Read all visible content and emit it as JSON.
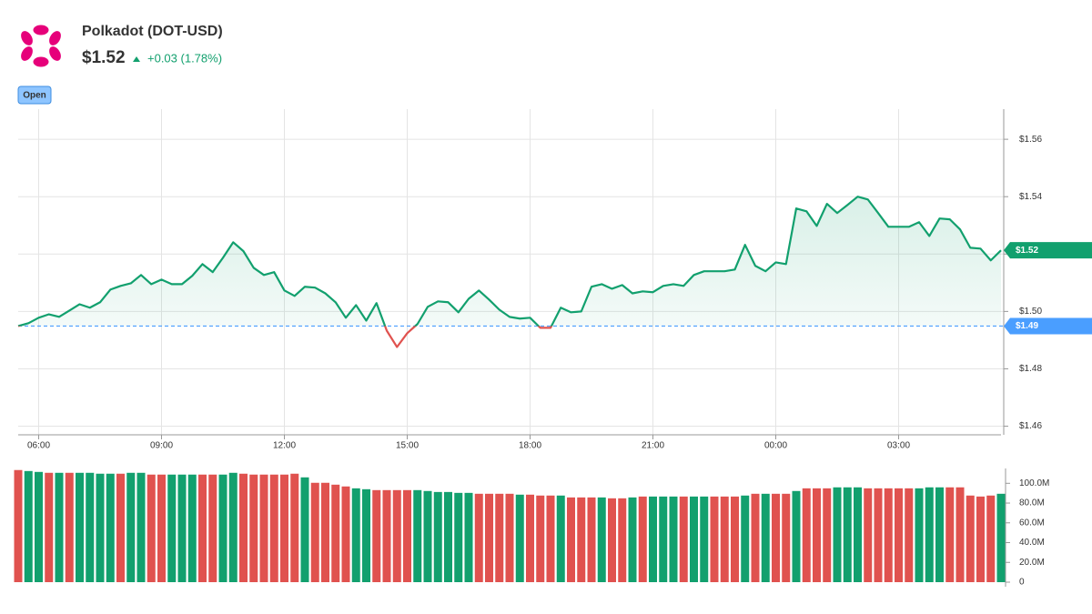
{
  "header": {
    "title": "Polkadot (DOT-USD)",
    "price": "$1.52",
    "change": "+0.03 (1.78%)",
    "status": "Open"
  },
  "chart_data": [
    {
      "type": "line",
      "categories": [
        null,
        null,
        "06:00",
        null,
        null,
        null,
        null,
        null,
        null,
        null,
        null,
        null,
        null,
        null,
        "09:00",
        null,
        null,
        null,
        null,
        null,
        null,
        null,
        null,
        null,
        null,
        null,
        "12:00",
        null,
        null,
        null,
        null,
        null,
        null,
        null,
        null,
        null,
        null,
        null,
        "15:00",
        null,
        null,
        null,
        null,
        null,
        null,
        null,
        null,
        null,
        null,
        null,
        "18:00",
        null,
        null,
        null,
        null,
        null,
        null,
        null,
        null,
        null,
        null,
        null,
        "21:00",
        null,
        null,
        null,
        null,
        null,
        null,
        null,
        null,
        null,
        null,
        null,
        "00:00",
        null,
        null,
        null,
        null,
        null,
        null,
        null,
        null,
        null,
        null,
        null,
        "03:00",
        null,
        null,
        null,
        null,
        null,
        null,
        null,
        null,
        null,
        null
      ],
      "values": [
        1.4949,
        1.4959,
        1.4978,
        1.499,
        1.4981,
        1.5003,
        1.5025,
        1.5013,
        1.5032,
        1.5076,
        1.5089,
        1.5098,
        1.5127,
        1.5095,
        1.5111,
        1.5095,
        1.5095,
        1.5124,
        1.5165,
        1.5137,
        1.5187,
        1.5241,
        1.521,
        1.5152,
        1.5127,
        1.5137,
        1.5073,
        1.5054,
        1.5086,
        1.5083,
        1.5063,
        1.5032,
        1.4978,
        1.5022,
        1.4968,
        1.5029,
        1.4933,
        1.4876,
        1.4924,
        1.4956,
        1.5016,
        1.5035,
        1.5032,
        1.4997,
        1.5044,
        1.5073,
        1.5041,
        1.5006,
        1.4981,
        1.4975,
        1.4978,
        1.4943,
        1.4943,
        1.5013,
        1.4997,
        1.5,
        1.5086,
        1.5095,
        1.5079,
        1.5092,
        1.5063,
        1.507,
        1.5067,
        1.5089,
        1.5095,
        1.5089,
        1.5127,
        1.514,
        1.514,
        1.514,
        1.5146,
        1.5232,
        1.5159,
        1.514,
        1.5171,
        1.5165,
        1.5359,
        1.5349,
        1.5298,
        1.5375,
        1.5343,
        1.5371,
        1.54,
        1.539,
        1.5343,
        1.5295,
        1.5295,
        1.5295,
        1.5311,
        1.5263,
        1.5324,
        1.5321,
        1.5286,
        1.5222,
        1.5219,
        1.5178,
        1.5213
      ],
      "color": "#12a06e",
      "below_color": "#e0524f",
      "ylim": [
        1.457,
        1.5705
      ],
      "yticks": [
        {
          "value": 1.46,
          "label": "$1.46"
        },
        {
          "value": 1.48,
          "label": "$1.48"
        },
        {
          "value": 1.5,
          "label": "$1.50"
        },
        {
          "value": 1.52,
          "label": "$1.52"
        },
        {
          "value": 1.54,
          "label": "$1.54"
        },
        {
          "value": 1.56,
          "label": "$1.56"
        }
      ],
      "grid": true,
      "reference_line": {
        "value": 1.4949,
        "label": "$1.49",
        "color": "#4a9eff"
      },
      "last_value_label": "$1.52"
    },
    {
      "type": "bar",
      "values": [
        113400000,
        112400000,
        111500000,
        110600000,
        110600000,
        110600000,
        110600000,
        110600000,
        109700000,
        109700000,
        109700000,
        110600000,
        110600000,
        108800000,
        108800000,
        108800000,
        108800000,
        108800000,
        108800000,
        108800000,
        108800000,
        110600000,
        109700000,
        108800000,
        108800000,
        108800000,
        108800000,
        109700000,
        106000000,
        100500000,
        100500000,
        98600000,
        96800000,
        94900000,
        94000000,
        93100000,
        93100000,
        93100000,
        93100000,
        93100000,
        92200000,
        91200000,
        91200000,
        90300000,
        90300000,
        89400000,
        89400000,
        89400000,
        89400000,
        88500000,
        88500000,
        87600000,
        87600000,
        87600000,
        85700000,
        85700000,
        85700000,
        85700000,
        84800000,
        84800000,
        85700000,
        86600000,
        86600000,
        86600000,
        86600000,
        86600000,
        86600000,
        86600000,
        86600000,
        86600000,
        86600000,
        87600000,
        89400000,
        89400000,
        89400000,
        89400000,
        92200000,
        94900000,
        94900000,
        94900000,
        95900000,
        95900000,
        95900000,
        94900000,
        94900000,
        94900000,
        94900000,
        94900000,
        94900000,
        95900000,
        95900000,
        95900000,
        95900000,
        87600000,
        86600000,
        87600000,
        89400000
      ],
      "colors": [
        "#e0524f",
        "#12a06e",
        "#12a06e",
        "#e0524f",
        "#12a06e",
        "#e0524f",
        "#12a06e",
        "#12a06e",
        "#12a06e",
        "#12a06e",
        "#e0524f",
        "#12a06e",
        "#12a06e",
        "#e0524f",
        "#e0524f",
        "#12a06e",
        "#12a06e",
        "#12a06e",
        "#e0524f",
        "#e0524f",
        "#12a06e",
        "#12a06e",
        "#e0524f",
        "#e0524f",
        "#e0524f",
        "#e0524f",
        "#e0524f",
        "#e0524f",
        "#12a06e",
        "#e0524f",
        "#e0524f",
        "#e0524f",
        "#e0524f",
        "#12a06e",
        "#12a06e",
        "#e0524f",
        "#e0524f",
        "#e0524f",
        "#e0524f",
        "#12a06e",
        "#12a06e",
        "#12a06e",
        "#12a06e",
        "#12a06e",
        "#12a06e",
        "#e0524f",
        "#e0524f",
        "#e0524f",
        "#e0524f",
        "#12a06e",
        "#e0524f",
        "#e0524f",
        "#e0524f",
        "#12a06e",
        "#e0524f",
        "#e0524f",
        "#e0524f",
        "#12a06e",
        "#e0524f",
        "#e0524f",
        "#12a06e",
        "#e0524f",
        "#12a06e",
        "#12a06e",
        "#12a06e",
        "#e0524f",
        "#12a06e",
        "#12a06e",
        "#e0524f",
        "#e0524f",
        "#e0524f",
        "#12a06e",
        "#e0524f",
        "#12a06e",
        "#e0524f",
        "#e0524f",
        "#12a06e",
        "#e0524f",
        "#e0524f",
        "#e0524f",
        "#12a06e",
        "#12a06e",
        "#12a06e",
        "#e0524f",
        "#e0524f",
        "#e0524f",
        "#e0524f",
        "#e0524f",
        "#12a06e",
        "#12a06e",
        "#12a06e",
        "#e0524f",
        "#e0524f",
        "#e0524f",
        "#e0524f",
        "#e0524f",
        "#12a06e"
      ],
      "ylim": [
        0,
        115000000
      ],
      "yticks": [
        0,
        {
          "value": 20000000,
          "label": "20.0M"
        },
        {
          "value": 40000000,
          "label": "40.0M"
        },
        {
          "value": 60000000,
          "label": "60.0M"
        },
        {
          "value": 80000000,
          "label": "80.0M"
        },
        {
          "value": 100000000,
          "label": "100.0M"
        }
      ]
    }
  ]
}
